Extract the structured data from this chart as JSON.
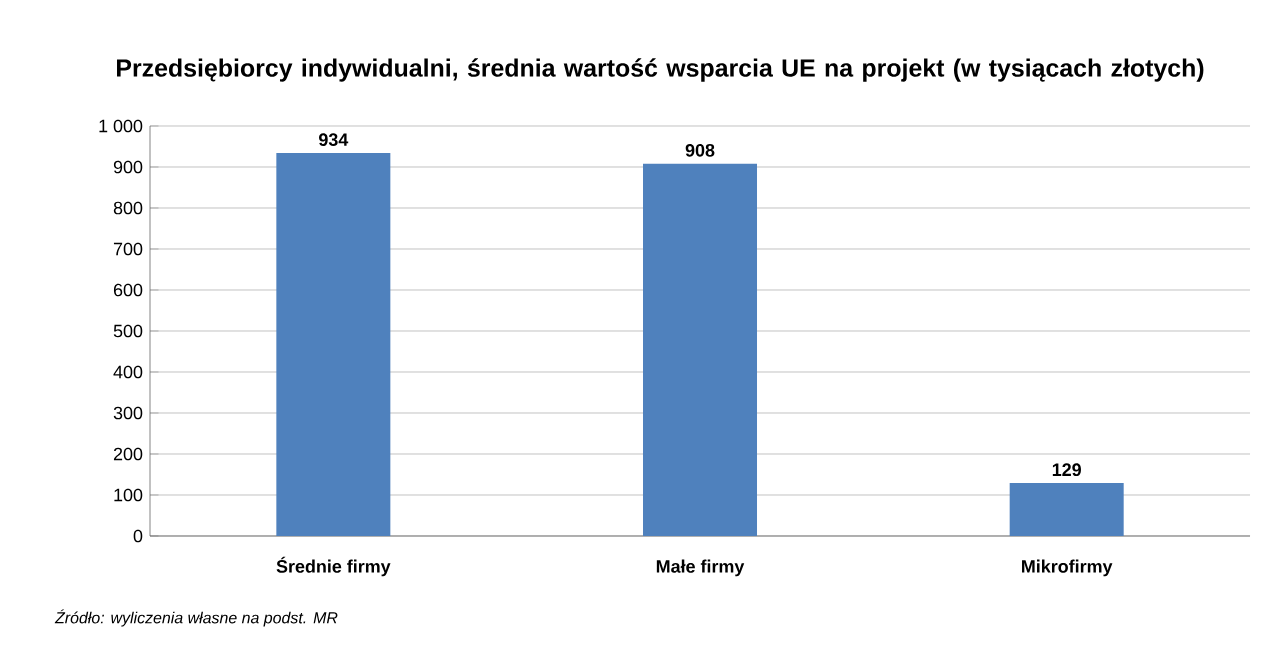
{
  "chart_data": {
    "type": "bar",
    "title": "Przedsiębiorcy indywidualni, średnia wartość wsparcia UE na projekt (w tysiącach złotych)",
    "categories": [
      "Średnie firmy",
      "Małe firmy",
      "Mikrofirmy"
    ],
    "values": [
      934,
      908,
      129
    ],
    "color": "#4f81bd",
    "ylim": [
      0,
      1000
    ],
    "yticks": [
      0,
      100,
      200,
      300,
      400,
      500,
      600,
      700,
      800,
      900,
      {
        "value": 1000,
        "label": "1 000"
      }
    ],
    "grid": "y",
    "data_labels": true,
    "annotations": [
      "Źródło: wyliczenia własne na podst. MR"
    ]
  }
}
